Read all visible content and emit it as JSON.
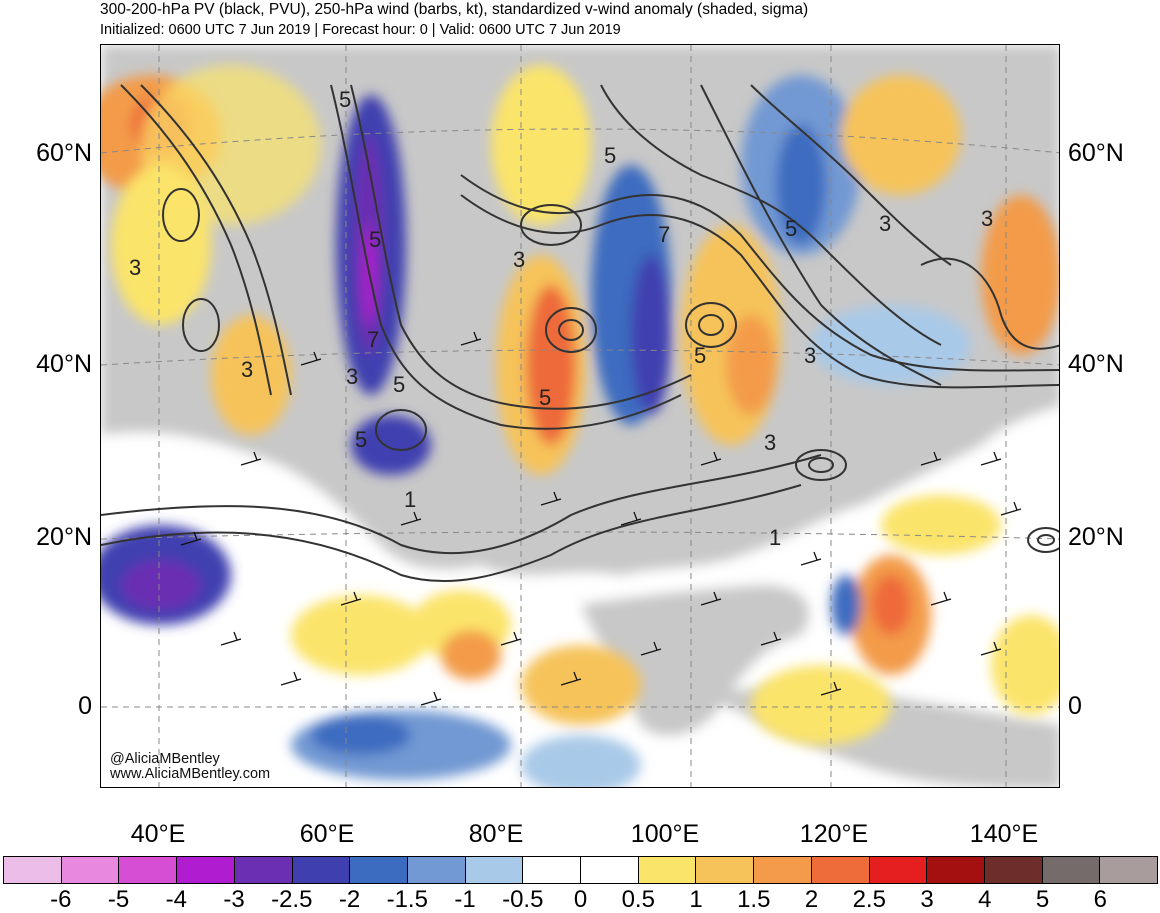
{
  "header": {
    "title": "300-200-hPa PV (black, PVU), 250-hPa wind (barbs, kt), standardized v-wind anomaly (shaded, sigma)",
    "subtitle": "Initialized: 0600 UTC 7 Jun 2019 | Forecast hour: 0 | Valid: 0600 UTC 7 Jun 2019"
  },
  "map": {
    "lat_labels": [
      "60°N",
      "40°N",
      "20°N",
      "0"
    ],
    "lon_labels": [
      "40°E",
      "60°E",
      "80°E",
      "100°E",
      "120°E",
      "140°E"
    ],
    "contour_labels": [
      "5",
      "5",
      "3",
      "3",
      "5",
      "5",
      "3",
      "3",
      "5",
      "5",
      "3",
      "3",
      "1",
      "1",
      "5",
      "7",
      "3",
      "7",
      "5",
      "3"
    ],
    "watermark": {
      "handle": "@AliciaMBentley",
      "site": "www.AliciaMBentley.com"
    }
  },
  "colorbar": {
    "labels": [
      "-6",
      "-5",
      "-4",
      "-3",
      "-2.5",
      "-2",
      "-1.5",
      "-1",
      "-0.5",
      "0",
      "0.5",
      "1",
      "1.5",
      "2",
      "2.5",
      "3",
      "4",
      "5",
      "6"
    ],
    "colors": [
      "#ecbde6",
      "#e889e0",
      "#d54ed3",
      "#b01cd0",
      "#6a2fb2",
      "#3f3fb0",
      "#3c6cc0",
      "#7299d3",
      "#a9c9e8",
      "#ffffff",
      "#ffffff",
      "#fbe46a",
      "#f6c35a",
      "#f39b4a",
      "#ee6b3a",
      "#e51f1f",
      "#a3100f",
      "#6d2d2a",
      "#766b6b",
      "#a89c9c"
    ]
  }
}
